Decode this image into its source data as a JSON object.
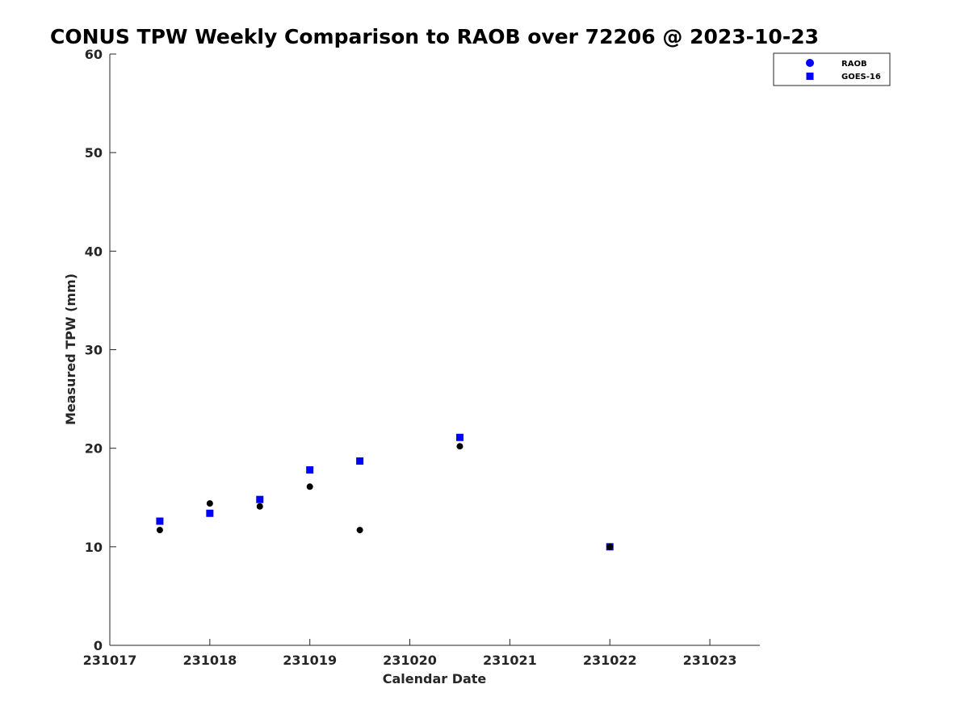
{
  "chart_data": {
    "type": "scatter",
    "title": "CONUS TPW Weekly Comparison to RAOB over 72206 @ 2023-10-23",
    "xlabel": "Calendar Date",
    "ylabel": "Measured TPW (mm)",
    "xlim": [
      231017,
      231023.5
    ],
    "ylim": [
      0,
      60
    ],
    "xticks": [
      231017,
      231018,
      231019,
      231020,
      231021,
      231022,
      231023
    ],
    "xtick_labels": [
      "231017",
      "231018",
      "231019",
      "231020",
      "231021",
      "231022",
      "231023"
    ],
    "yticks": [
      0,
      10,
      20,
      30,
      40,
      50,
      60
    ],
    "ytick_labels": [
      "0",
      "10",
      "20",
      "30",
      "40",
      "50",
      "60"
    ],
    "grid": false,
    "legend_position": "top-right-outside",
    "series": [
      {
        "name": "RAOB",
        "marker": "circle",
        "legend_color": "#0000ff",
        "color": "#000000",
        "x": [
          231017.5,
          231018.0,
          231018.5,
          231019.0,
          231019.5,
          231020.5,
          231022.0
        ],
        "y": [
          11.7,
          14.4,
          14.1,
          16.1,
          11.7,
          20.2,
          10.0
        ]
      },
      {
        "name": "GOES-16",
        "marker": "square",
        "color": "#0000ff",
        "x": [
          231017.5,
          231018.0,
          231018.5,
          231019.0,
          231019.5,
          231020.5,
          231022.0
        ],
        "y": [
          12.6,
          13.4,
          14.8,
          17.8,
          18.7,
          21.1,
          10.0
        ]
      }
    ]
  }
}
